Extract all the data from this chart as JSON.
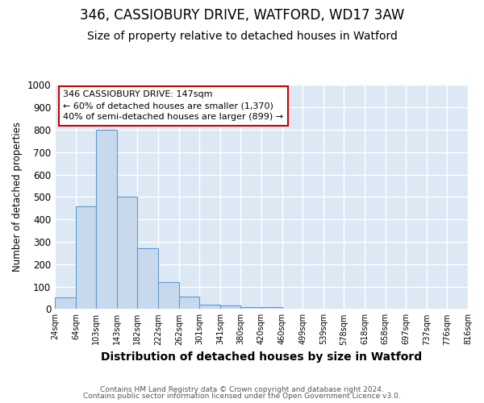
{
  "title": "346, CASSIOBURY DRIVE, WATFORD, WD17 3AW",
  "subtitle": "Size of property relative to detached houses in Watford",
  "xlabel": "Distribution of detached houses by size in Watford",
  "ylabel": "Number of detached properties",
  "bar_heights": [
    50,
    460,
    800,
    500,
    270,
    120,
    55,
    20,
    15,
    10,
    8,
    0,
    0,
    0,
    0,
    0,
    0,
    0,
    0,
    0
  ],
  "bin_edges": [
    24,
    64,
    103,
    143,
    182,
    222,
    262,
    301,
    341,
    380,
    420,
    460,
    499,
    539,
    578,
    618,
    658,
    697,
    737,
    776,
    816
  ],
  "tick_labels": [
    "24sqm",
    "64sqm",
    "103sqm",
    "143sqm",
    "182sqm",
    "222sqm",
    "262sqm",
    "301sqm",
    "341sqm",
    "380sqm",
    "420sqm",
    "460sqm",
    "499sqm",
    "539sqm",
    "578sqm",
    "618sqm",
    "658sqm",
    "697sqm",
    "737sqm",
    "776sqm",
    "816sqm"
  ],
  "bar_color": "#c9d9ed",
  "bar_edge_color": "#5b9bd5",
  "ylim": [
    0,
    1000
  ],
  "yticks": [
    0,
    100,
    200,
    300,
    400,
    500,
    600,
    700,
    800,
    900,
    1000
  ],
  "annotation_text": "346 CASSIOBURY DRIVE: 147sqm\n← 60% of detached houses are smaller (1,370)\n40% of semi-detached houses are larger (899) →",
  "annotation_box_color": "#ffffff",
  "annotation_box_edge": "#cc0000",
  "footer1": "Contains HM Land Registry data © Crown copyright and database right 2024.",
  "footer2": "Contains public sector information licensed under the Open Government Licence v3.0.",
  "fig_background_color": "#ffffff",
  "plot_bg_color": "#dce9f5",
  "grid_color": "#ffffff",
  "title_fontsize": 12,
  "subtitle_fontsize": 10,
  "xlabel_fontsize": 10,
  "ylabel_fontsize": 8.5
}
